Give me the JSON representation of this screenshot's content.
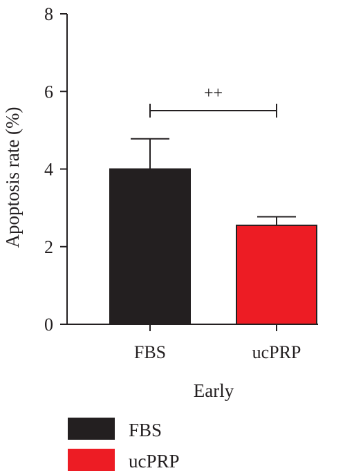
{
  "chart_data": {
    "type": "bar",
    "categories": [
      "FBS",
      "ucPRP"
    ],
    "values": [
      4.0,
      2.55
    ],
    "errors": [
      0.78,
      0.22
    ],
    "colors": [
      "#231f20",
      "#ed1c24"
    ],
    "ylabel": "Apoptosis rate (%)",
    "xlabel": "Early",
    "ylim": [
      0,
      8
    ],
    "yticks": [
      0,
      2,
      4,
      6,
      8
    ],
    "grid": false,
    "significance": {
      "from": 0,
      "to": 1,
      "label": "++"
    },
    "legend": {
      "position": "bottom-left",
      "entries": [
        {
          "label": "FBS",
          "color": "#231f20"
        },
        {
          "label": "ucPRP",
          "color": "#ed1c24"
        }
      ]
    }
  }
}
